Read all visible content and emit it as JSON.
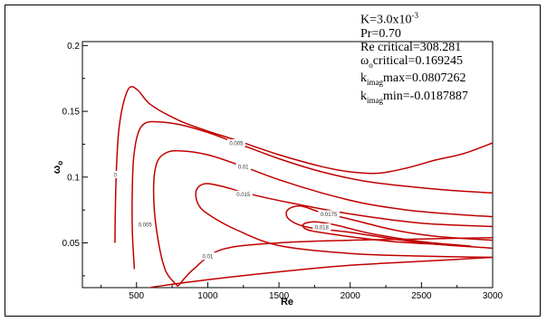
{
  "chart_data": {
    "type": "contour",
    "xlabel": "Re",
    "ylabel": "ω",
    "ylabel_sub": "o",
    "xlim": [
      120,
      3000
    ],
    "ylim": [
      0.016,
      0.203
    ],
    "xticks": [
      500,
      1000,
      1500,
      2000,
      2500,
      3000
    ],
    "yticks": [
      0.05,
      0.1,
      0.15,
      0.2
    ],
    "xtick_labels": [
      "500",
      "1000",
      "1500",
      "2000",
      "2500",
      "3000"
    ],
    "ytick_labels": [
      "0.05",
      "0.1",
      "0.15",
      "0.2"
    ],
    "line_color": "#c00000",
    "parameters": {
      "K_label": "K=3.0x10",
      "K_exp": "-3",
      "Pr": "Pr=0.70",
      "Re_critical": "Re critical=308.281",
      "omega_prefix": "ω",
      "omega_sub": "o",
      "omega_critical": "critical=0.169245",
      "k_prefix": "k",
      "k_sub": "imag",
      "k_max": "max=0.0807262",
      "k_min": "min=-0.0187887"
    },
    "contours": [
      {
        "label": "0",
        "label_at": [
          350,
          0.102
        ],
        "points": [
          [
            348,
            0.05
          ],
          [
            352,
            0.08
          ],
          [
            360,
            0.11
          ],
          [
            375,
            0.135
          ],
          [
            405,
            0.155
          ],
          [
            450,
            0.168
          ],
          [
            510,
            0.166
          ],
          [
            600,
            0.155
          ],
          [
            800,
            0.143
          ],
          [
            1000,
            0.135
          ],
          [
            1200,
            0.128
          ],
          [
            1500,
            0.117
          ],
          [
            1800,
            0.108
          ],
          [
            2000,
            0.104
          ],
          [
            2200,
            0.103
          ],
          [
            2400,
            0.107
          ],
          [
            2600,
            0.113
          ],
          [
            2800,
            0.118
          ],
          [
            3000,
            0.126
          ]
        ]
      },
      {
        "label": "0.005",
        "label_at": [
          1200,
          0.126
        ],
        "points": [
          [
            485,
            0.03
          ],
          [
            470,
            0.06
          ],
          [
            470,
            0.09
          ],
          [
            480,
            0.115
          ],
          [
            510,
            0.133
          ],
          [
            560,
            0.141
          ],
          [
            650,
            0.142
          ],
          [
            800,
            0.14
          ],
          [
            1000,
            0.134
          ],
          [
            1200,
            0.126
          ],
          [
            1500,
            0.114
          ],
          [
            1800,
            0.104
          ],
          [
            2100,
            0.097
          ],
          [
            2400,
            0.093
          ],
          [
            2700,
            0.09
          ],
          [
            3000,
            0.088
          ]
        ]
      },
      {
        "label": "0.005",
        "label_at": [
          560,
          0.064
        ],
        "points": [
          [
            600,
            0.0163
          ],
          [
            1000,
            0.022
          ],
          [
            1500,
            0.028
          ],
          [
            2000,
            0.033
          ],
          [
            2500,
            0.036
          ],
          [
            3000,
            0.039
          ]
        ]
      },
      {
        "label": "0.01",
        "label_at": [
          1250,
          0.108
        ],
        "points": [
          [
            790,
            0.017
          ],
          [
            700,
            0.03
          ],
          [
            640,
            0.06
          ],
          [
            620,
            0.09
          ],
          [
            640,
            0.11
          ],
          [
            700,
            0.118
          ],
          [
            800,
            0.12
          ],
          [
            1000,
            0.117
          ],
          [
            1250,
            0.108
          ],
          [
            1500,
            0.098
          ],
          [
            1800,
            0.088
          ],
          [
            2100,
            0.08
          ],
          [
            2400,
            0.075
          ],
          [
            2700,
            0.072
          ],
          [
            3000,
            0.07
          ]
        ]
      },
      {
        "label": "0.01",
        "label_at": [
          1000,
          0.04
        ],
        "points": [
          [
            790,
            0.017
          ],
          [
            900,
            0.03
          ],
          [
            1100,
            0.045
          ],
          [
            1500,
            0.05
          ],
          [
            2000,
            0.052
          ],
          [
            2500,
            0.053
          ],
          [
            3000,
            0.054
          ]
        ]
      },
      {
        "label": "0.015",
        "label_at": [
          1250,
          0.087
        ],
        "points": [
          [
            3000,
            0.0625
          ],
          [
            2500,
            0.065
          ],
          [
            2000,
            0.072
          ],
          [
            1600,
            0.08
          ],
          [
            1300,
            0.087
          ],
          [
            1100,
            0.093
          ],
          [
            980,
            0.095
          ],
          [
            920,
            0.09
          ],
          [
            930,
            0.08
          ],
          [
            1000,
            0.072
          ],
          [
            1200,
            0.06
          ],
          [
            1500,
            0.048
          ],
          [
            2000,
            0.042
          ],
          [
            2500,
            0.04
          ],
          [
            3000,
            0.039
          ]
        ]
      },
      {
        "label": "0.0175",
        "label_at": [
          1850,
          0.072
        ],
        "points": [
          [
            3000,
            0.052
          ],
          [
            2600,
            0.055
          ],
          [
            2300,
            0.06
          ],
          [
            2000,
            0.068
          ],
          [
            1800,
            0.073
          ],
          [
            1650,
            0.078
          ],
          [
            1560,
            0.075
          ],
          [
            1570,
            0.068
          ],
          [
            1700,
            0.062
          ],
          [
            2000,
            0.058
          ],
          [
            2300,
            0.053
          ],
          [
            2600,
            0.049
          ],
          [
            3000,
            0.046
          ]
        ]
      },
      {
        "label": "0.018",
        "label_at": [
          1800,
          0.062
        ],
        "points": [
          [
            2850,
            0.0475
          ],
          [
            2500,
            0.051
          ],
          [
            2150,
            0.057
          ],
          [
            1900,
            0.0635
          ],
          [
            1750,
            0.066
          ],
          [
            1670,
            0.064
          ],
          [
            1700,
            0.06
          ],
          [
            1850,
            0.057
          ],
          [
            2050,
            0.054
          ],
          [
            2300,
            0.051
          ],
          [
            2600,
            0.049
          ],
          [
            2850,
            0.0475
          ]
        ]
      }
    ]
  }
}
